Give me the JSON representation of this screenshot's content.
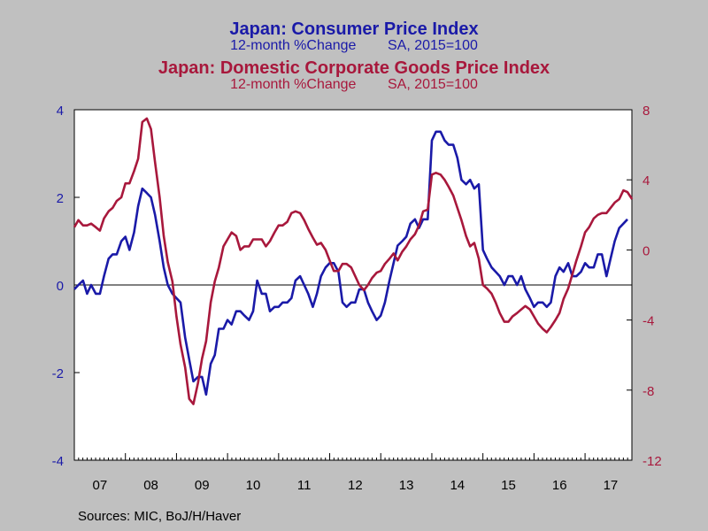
{
  "titles": {
    "cpi_title": "Japan: Consumer Price Index",
    "cpi_subtitle": "12-month %Change        SA, 2015=100",
    "cgpi_title": "Japan: Domestic Corporate Goods Price Index",
    "cgpi_subtitle": "12-month %Change        SA, 2015=100"
  },
  "source": "Sources:  MIC, BoJ/H/Haver",
  "colors": {
    "cpi": "#1a1aa8",
    "cgpi": "#a8183c",
    "background": "#c0c0c0",
    "plot": "#ffffff"
  },
  "chart_data": {
    "type": "line",
    "x_tick_labels": [
      "07",
      "08",
      "09",
      "10",
      "11",
      "12",
      "13",
      "14",
      "15",
      "16",
      "17"
    ],
    "x_range": [
      2007.0,
      2017.917
    ],
    "left_axis": {
      "ylim": [
        -4,
        4
      ],
      "ticks": [
        4,
        2,
        0,
        -2,
        -4
      ],
      "tick_labels": [
        "4",
        "2",
        "0",
        "-2",
        "-4"
      ]
    },
    "right_axis": {
      "ylim": [
        -12,
        8
      ],
      "ticks": [
        8,
        4,
        0,
        -4,
        -8,
        -12
      ],
      "tick_labels": [
        "8",
        "4",
        "0",
        "-4",
        "-8",
        "-12"
      ]
    },
    "zero_line": true,
    "grid": false,
    "series": [
      {
        "name": "Japan: Consumer Price Index",
        "axis": "left",
        "color": "#1a1aa8",
        "points": [
          [
            2007.0,
            -0.1
          ],
          [
            2007.08,
            0.0
          ],
          [
            2007.17,
            0.1
          ],
          [
            2007.25,
            -0.2
          ],
          [
            2007.33,
            0.0
          ],
          [
            2007.42,
            -0.2
          ],
          [
            2007.5,
            -0.2
          ],
          [
            2007.58,
            0.2
          ],
          [
            2007.67,
            0.6
          ],
          [
            2007.75,
            0.7
          ],
          [
            2007.83,
            0.7
          ],
          [
            2007.92,
            1.0
          ],
          [
            2008.0,
            1.1
          ],
          [
            2008.08,
            0.8
          ],
          [
            2008.17,
            1.2
          ],
          [
            2008.25,
            1.8
          ],
          [
            2008.33,
            2.2
          ],
          [
            2008.42,
            2.1
          ],
          [
            2008.5,
            2.0
          ],
          [
            2008.58,
            1.6
          ],
          [
            2008.67,
            1.0
          ],
          [
            2008.75,
            0.4
          ],
          [
            2008.83,
            0.0
          ],
          [
            2008.92,
            -0.2
          ],
          [
            2009.0,
            -0.3
          ],
          [
            2009.08,
            -0.4
          ],
          [
            2009.17,
            -1.2
          ],
          [
            2009.25,
            -1.7
          ],
          [
            2009.33,
            -2.2
          ],
          [
            2009.42,
            -2.1
          ],
          [
            2009.5,
            -2.1
          ],
          [
            2009.58,
            -2.5
          ],
          [
            2009.67,
            -1.8
          ],
          [
            2009.75,
            -1.6
          ],
          [
            2009.83,
            -1.0
          ],
          [
            2009.92,
            -1.0
          ],
          [
            2010.0,
            -0.8
          ],
          [
            2010.08,
            -0.9
          ],
          [
            2010.17,
            -0.6
          ],
          [
            2010.25,
            -0.6
          ],
          [
            2010.33,
            -0.7
          ],
          [
            2010.42,
            -0.8
          ],
          [
            2010.5,
            -0.6
          ],
          [
            2010.58,
            0.1
          ],
          [
            2010.67,
            -0.2
          ],
          [
            2010.75,
            -0.2
          ],
          [
            2010.83,
            -0.6
          ],
          [
            2010.92,
            -0.5
          ],
          [
            2011.0,
            -0.5
          ],
          [
            2011.08,
            -0.4
          ],
          [
            2011.17,
            -0.4
          ],
          [
            2011.25,
            -0.3
          ],
          [
            2011.33,
            0.1
          ],
          [
            2011.42,
            0.2
          ],
          [
            2011.5,
            0.0
          ],
          [
            2011.58,
            -0.2
          ],
          [
            2011.67,
            -0.5
          ],
          [
            2011.75,
            -0.2
          ],
          [
            2011.83,
            0.2
          ],
          [
            2011.92,
            0.4
          ],
          [
            2012.0,
            0.5
          ],
          [
            2012.08,
            0.5
          ],
          [
            2012.17,
            0.3
          ],
          [
            2012.25,
            -0.4
          ],
          [
            2012.33,
            -0.5
          ],
          [
            2012.42,
            -0.4
          ],
          [
            2012.5,
            -0.4
          ],
          [
            2012.58,
            -0.1
          ],
          [
            2012.67,
            -0.1
          ],
          [
            2012.75,
            -0.4
          ],
          [
            2012.83,
            -0.6
          ],
          [
            2012.92,
            -0.8
          ],
          [
            2013.0,
            -0.7
          ],
          [
            2013.08,
            -0.4
          ],
          [
            2013.17,
            0.1
          ],
          [
            2013.25,
            0.5
          ],
          [
            2013.33,
            0.9
          ],
          [
            2013.42,
            1.0
          ],
          [
            2013.5,
            1.1
          ],
          [
            2013.58,
            1.4
          ],
          [
            2013.67,
            1.5
          ],
          [
            2013.75,
            1.3
          ],
          [
            2013.83,
            1.5
          ],
          [
            2013.92,
            1.5
          ],
          [
            2014.0,
            3.3
          ],
          [
            2014.08,
            3.5
          ],
          [
            2014.17,
            3.5
          ],
          [
            2014.25,
            3.3
          ],
          [
            2014.33,
            3.2
          ],
          [
            2014.42,
            3.2
          ],
          [
            2014.5,
            2.9
          ],
          [
            2014.58,
            2.4
          ],
          [
            2014.67,
            2.3
          ],
          [
            2014.75,
            2.4
          ],
          [
            2014.83,
            2.2
          ],
          [
            2014.92,
            2.3
          ],
          [
            2015.0,
            0.8
          ],
          [
            2015.08,
            0.6
          ],
          [
            2015.17,
            0.4
          ],
          [
            2015.25,
            0.3
          ],
          [
            2015.33,
            0.2
          ],
          [
            2015.42,
            0.0
          ],
          [
            2015.5,
            0.2
          ],
          [
            2015.58,
            0.2
          ],
          [
            2015.67,
            0.0
          ],
          [
            2015.75,
            0.2
          ],
          [
            2015.83,
            -0.1
          ],
          [
            2015.92,
            -0.3
          ],
          [
            2016.0,
            -0.5
          ],
          [
            2016.08,
            -0.4
          ],
          [
            2016.17,
            -0.4
          ],
          [
            2016.25,
            -0.5
          ],
          [
            2016.33,
            -0.4
          ],
          [
            2016.42,
            0.2
          ],
          [
            2016.5,
            0.4
          ],
          [
            2016.58,
            0.3
          ],
          [
            2016.67,
            0.5
          ],
          [
            2016.75,
            0.2
          ],
          [
            2016.83,
            0.2
          ],
          [
            2016.92,
            0.3
          ],
          [
            2017.0,
            0.5
          ],
          [
            2017.08,
            0.4
          ],
          [
            2017.17,
            0.4
          ],
          [
            2017.25,
            0.7
          ],
          [
            2017.33,
            0.7
          ],
          [
            2017.42,
            0.2
          ],
          [
            2017.5,
            0.6
          ],
          [
            2017.58,
            1.0
          ],
          [
            2017.67,
            1.3
          ],
          [
            2017.75,
            1.4
          ],
          [
            2017.83,
            1.5
          ]
        ]
      },
      {
        "name": "Japan: Domestic Corporate Goods Price Index",
        "axis": "right",
        "color": "#a8183c",
        "points": [
          [
            2007.0,
            1.3
          ],
          [
            2007.08,
            1.7
          ],
          [
            2007.17,
            1.4
          ],
          [
            2007.25,
            1.4
          ],
          [
            2007.33,
            1.5
          ],
          [
            2007.42,
            1.3
          ],
          [
            2007.5,
            1.1
          ],
          [
            2007.58,
            1.8
          ],
          [
            2007.67,
            2.2
          ],
          [
            2007.75,
            2.4
          ],
          [
            2007.83,
            2.8
          ],
          [
            2007.92,
            3.0
          ],
          [
            2008.0,
            3.8
          ],
          [
            2008.08,
            3.8
          ],
          [
            2008.17,
            4.5
          ],
          [
            2008.25,
            5.2
          ],
          [
            2008.33,
            7.3
          ],
          [
            2008.42,
            7.5
          ],
          [
            2008.5,
            6.9
          ],
          [
            2008.58,
            5.0
          ],
          [
            2008.67,
            3.0
          ],
          [
            2008.75,
            0.8
          ],
          [
            2008.83,
            -0.7
          ],
          [
            2008.92,
            -1.8
          ],
          [
            2009.0,
            -3.8
          ],
          [
            2009.08,
            -5.4
          ],
          [
            2009.17,
            -6.7
          ],
          [
            2009.25,
            -8.5
          ],
          [
            2009.33,
            -8.8
          ],
          [
            2009.42,
            -7.6
          ],
          [
            2009.5,
            -6.2
          ],
          [
            2009.58,
            -5.2
          ],
          [
            2009.67,
            -3.0
          ],
          [
            2009.75,
            -1.8
          ],
          [
            2009.83,
            -1.0
          ],
          [
            2009.92,
            0.2
          ],
          [
            2010.0,
            0.6
          ],
          [
            2010.08,
            1.0
          ],
          [
            2010.17,
            0.8
          ],
          [
            2010.25,
            0.0
          ],
          [
            2010.33,
            0.2
          ],
          [
            2010.42,
            0.2
          ],
          [
            2010.5,
            0.6
          ],
          [
            2010.58,
            0.6
          ],
          [
            2010.67,
            0.6
          ],
          [
            2010.75,
            0.2
          ],
          [
            2010.83,
            0.5
          ],
          [
            2010.92,
            1.0
          ],
          [
            2011.0,
            1.4
          ],
          [
            2011.08,
            1.4
          ],
          [
            2011.17,
            1.6
          ],
          [
            2011.25,
            2.1
          ],
          [
            2011.33,
            2.2
          ],
          [
            2011.42,
            2.1
          ],
          [
            2011.5,
            1.7
          ],
          [
            2011.58,
            1.2
          ],
          [
            2011.67,
            0.7
          ],
          [
            2011.75,
            0.3
          ],
          [
            2011.83,
            0.4
          ],
          [
            2011.92,
            0.0
          ],
          [
            2012.0,
            -0.6
          ],
          [
            2012.08,
            -1.2
          ],
          [
            2012.17,
            -1.2
          ],
          [
            2012.25,
            -0.8
          ],
          [
            2012.33,
            -0.8
          ],
          [
            2012.42,
            -1.0
          ],
          [
            2012.5,
            -1.5
          ],
          [
            2012.58,
            -2.0
          ],
          [
            2012.67,
            -2.3
          ],
          [
            2012.75,
            -2.0
          ],
          [
            2012.83,
            -1.6
          ],
          [
            2012.92,
            -1.3
          ],
          [
            2013.0,
            -1.2
          ],
          [
            2013.08,
            -0.8
          ],
          [
            2013.17,
            -0.5
          ],
          [
            2013.25,
            -0.2
          ],
          [
            2013.33,
            -0.6
          ],
          [
            2013.42,
            -0.1
          ],
          [
            2013.5,
            0.2
          ],
          [
            2013.58,
            0.6
          ],
          [
            2013.67,
            0.9
          ],
          [
            2013.75,
            1.4
          ],
          [
            2013.83,
            2.2
          ],
          [
            2013.92,
            2.3
          ],
          [
            2014.0,
            4.3
          ],
          [
            2014.08,
            4.4
          ],
          [
            2014.17,
            4.3
          ],
          [
            2014.25,
            4.0
          ],
          [
            2014.33,
            3.6
          ],
          [
            2014.42,
            3.1
          ],
          [
            2014.5,
            2.4
          ],
          [
            2014.58,
            1.7
          ],
          [
            2014.67,
            0.8
          ],
          [
            2014.75,
            0.2
          ],
          [
            2014.83,
            0.4
          ],
          [
            2014.92,
            -0.5
          ],
          [
            2015.0,
            -2.0
          ],
          [
            2015.08,
            -2.2
          ],
          [
            2015.17,
            -2.5
          ],
          [
            2015.25,
            -3.0
          ],
          [
            2015.33,
            -3.6
          ],
          [
            2015.42,
            -4.1
          ],
          [
            2015.5,
            -4.1
          ],
          [
            2015.58,
            -3.8
          ],
          [
            2015.67,
            -3.6
          ],
          [
            2015.75,
            -3.4
          ],
          [
            2015.83,
            -3.2
          ],
          [
            2015.92,
            -3.4
          ],
          [
            2016.0,
            -3.8
          ],
          [
            2016.08,
            -4.2
          ],
          [
            2016.17,
            -4.5
          ],
          [
            2016.25,
            -4.7
          ],
          [
            2016.33,
            -4.4
          ],
          [
            2016.42,
            -4.0
          ],
          [
            2016.5,
            -3.6
          ],
          [
            2016.58,
            -2.8
          ],
          [
            2016.67,
            -2.2
          ],
          [
            2016.75,
            -1.4
          ],
          [
            2016.83,
            -0.6
          ],
          [
            2016.92,
            0.2
          ],
          [
            2017.0,
            1.0
          ],
          [
            2017.08,
            1.3
          ],
          [
            2017.17,
            1.8
          ],
          [
            2017.25,
            2.0
          ],
          [
            2017.33,
            2.1
          ],
          [
            2017.42,
            2.1
          ],
          [
            2017.5,
            2.4
          ],
          [
            2017.58,
            2.7
          ],
          [
            2017.67,
            2.9
          ],
          [
            2017.75,
            3.4
          ],
          [
            2017.83,
            3.3
          ],
          [
            2017.92,
            2.9
          ]
        ]
      }
    ]
  }
}
